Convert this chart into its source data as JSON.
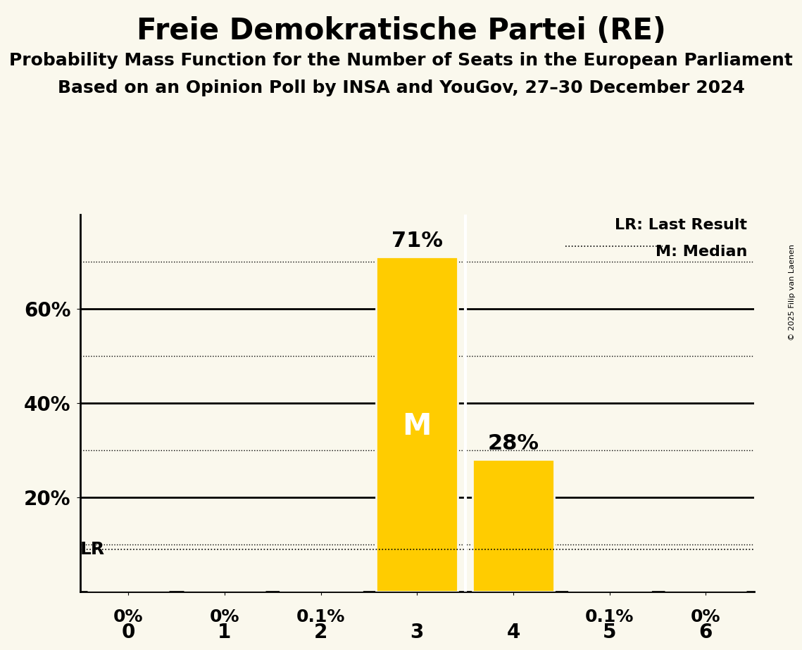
{
  "title": "Freie Demokratische Partei (RE)",
  "subtitle1": "Probability Mass Function for the Number of Seats in the European Parliament",
  "subtitle2": "Based on an Opinion Poll by INSA and YouGov, 27–30 December 2024",
  "copyright": "© 2025 Filip van Laenen",
  "categories": [
    0,
    1,
    2,
    3,
    4,
    5,
    6
  ],
  "values": [
    0.0,
    0.0,
    0.001,
    0.71,
    0.28,
    0.001,
    0.0
  ],
  "bar_labels": [
    "0%",
    "0%",
    "0.1%",
    "71%",
    "28%",
    "0.1%",
    "0%"
  ],
  "bar_colors": [
    "#FAF8ED",
    "#FAF8ED",
    "#FAF8ED",
    "#FFCC00",
    "#FFCC00",
    "#FAF8ED",
    "#FAF8ED"
  ],
  "background_color": "#FAF8ED",
  "median_bar": 3,
  "median_label": "M",
  "lr_value": 0.09,
  "lr_label": "LR",
  "legend_lr": "LR: Last Result",
  "legend_m": "M: Median",
  "ylim": [
    0,
    0.8
  ],
  "dotted_lines": [
    0.1,
    0.3,
    0.5,
    0.7
  ],
  "solid_lines": [
    0.2,
    0.4,
    0.6
  ],
  "title_fontsize": 30,
  "subtitle_fontsize": 18,
  "label_fontsize": 18,
  "tick_fontsize": 18,
  "legend_fontsize": 16
}
